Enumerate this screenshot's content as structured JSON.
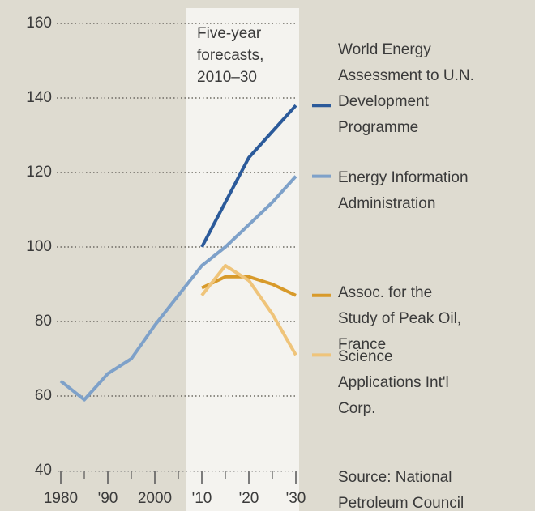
{
  "chart_data": {
    "type": "line",
    "annotation": "Five-year forecasts, 2010–30",
    "source": "Source: National Petroleum Council",
    "x": [
      1980,
      1985,
      1990,
      1995,
      2000,
      2005,
      2010,
      2015,
      2020,
      2025,
      2030
    ],
    "xlim": [
      1980,
      2030
    ],
    "xticks": [
      1980,
      {
        "value": 1990,
        "label": "'90"
      },
      2000,
      {
        "value": 2010,
        "label": "'10"
      },
      {
        "value": 2020,
        "label": "'20"
      },
      {
        "value": 2030,
        "label": "'30"
      }
    ],
    "ylim": [
      40,
      160
    ],
    "yticks": [
      40,
      60,
      80,
      100,
      120,
      140,
      160
    ],
    "grid": true,
    "series": [
      {
        "name": "World Energy Assessment to U.N. Development Programme",
        "color": "#2b5a9a",
        "values": [
          null,
          null,
          null,
          null,
          null,
          null,
          100,
          112,
          124,
          131,
          138
        ]
      },
      {
        "name": "Energy Information Administration",
        "color": "#7ea1c9",
        "values": [
          64,
          59,
          66,
          70,
          79,
          87,
          95,
          100,
          106,
          112,
          119
        ]
      },
      {
        "name": "Assoc. for the Study of Peak Oil, France",
        "color": "#d89a2a",
        "values": [
          null,
          null,
          null,
          null,
          null,
          null,
          89,
          92,
          92,
          90,
          87
        ]
      },
      {
        "name": "Science Applications Int'l Corp.",
        "color": "#efc47a",
        "values": [
          null,
          null,
          null,
          null,
          null,
          null,
          87,
          95,
          91,
          82,
          71
        ]
      }
    ]
  }
}
